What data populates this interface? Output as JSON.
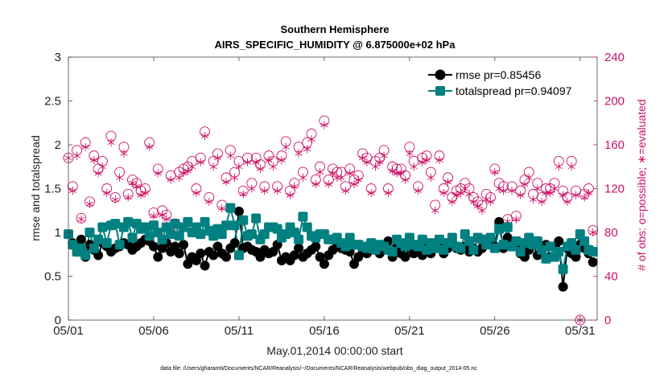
{
  "chart_data": {
    "type": "line",
    "title": "Southern Hemisphere",
    "subtitle": "AIRS_SPECIFIC_HUMIDITY @ 6.875000e+02 hPa",
    "xlabel": "May.01,2014 00:00:00 start",
    "ylabel_left": "rmse and totalspread",
    "ylabel_right": "# of obs: o=possible; ∗=evaluated",
    "footnote": "data file: /Users/gharamti/Documents/NCAR/Reanalysis/~/Documents/NCAR/Reanalysis/webpub/obs_diag_output_2014-05.nc",
    "xlim": [
      1,
      32
    ],
    "ylim_left": [
      0,
      3
    ],
    "ylim_right": [
      0,
      240
    ],
    "x_ticks": [
      1,
      6,
      11,
      16,
      21,
      26,
      31
    ],
    "x_tick_labels": [
      "05/01",
      "05/06",
      "05/11",
      "05/16",
      "05/21",
      "05/26",
      "05/31"
    ],
    "y_left_ticks": [
      0,
      0.5,
      1,
      1.5,
      2,
      2.5,
      3
    ],
    "y_left_tick_labels": [
      "0",
      "0.5",
      "1",
      "1.5",
      "2",
      "2.5",
      "3"
    ],
    "y_right_ticks": [
      0,
      40,
      80,
      120,
      160,
      200,
      240
    ],
    "y_right_tick_labels": [
      "0",
      "40",
      "80",
      "120",
      "160",
      "200",
      "240"
    ],
    "legend_position": "top-right",
    "colors": {
      "rmse": "#000000",
      "totalspread": "#008080",
      "obs": "#cc1166"
    },
    "x": [
      1.0,
      1.25,
      1.5,
      1.75,
      2.0,
      2.25,
      2.5,
      2.75,
      3.0,
      3.25,
      3.5,
      3.75,
      4.0,
      4.25,
      4.5,
      4.75,
      5.0,
      5.25,
      5.5,
      5.75,
      6.0,
      6.25,
      6.5,
      6.75,
      7.0,
      7.25,
      7.5,
      7.75,
      8.0,
      8.25,
      8.5,
      8.75,
      9.0,
      9.25,
      9.5,
      9.75,
      10.0,
      10.25,
      10.5,
      10.75,
      11.0,
      11.25,
      11.5,
      11.75,
      12.0,
      12.25,
      12.5,
      12.75,
      13.0,
      13.25,
      13.5,
      13.75,
      14.0,
      14.25,
      14.5,
      14.75,
      15.0,
      15.25,
      15.5,
      15.75,
      16.0,
      16.25,
      16.5,
      16.75,
      17.0,
      17.25,
      17.5,
      17.75,
      18.0,
      18.25,
      18.5,
      18.75,
      19.0,
      19.25,
      19.5,
      19.75,
      20.0,
      20.25,
      20.5,
      20.75,
      21.0,
      21.25,
      21.5,
      21.75,
      22.0,
      22.25,
      22.5,
      22.75,
      23.0,
      23.25,
      23.5,
      23.75,
      24.0,
      24.25,
      24.5,
      24.75,
      25.0,
      25.25,
      25.5,
      25.75,
      26.0,
      26.25,
      26.5,
      26.75,
      27.0,
      27.25,
      27.5,
      27.75,
      28.0,
      28.25,
      28.5,
      28.75,
      29.0,
      29.25,
      29.5,
      29.75,
      30.0,
      30.25,
      30.5,
      30.75,
      31.0,
      31.25,
      31.5,
      31.75
    ],
    "series": [
      {
        "name": "rmse",
        "legend_label": "rmse pr=0.85456",
        "axis": "left",
        "values": [
          0.98,
          0.88,
          0.84,
          0.92,
          0.72,
          0.86,
          0.8,
          0.74,
          0.88,
          0.84,
          0.78,
          0.82,
          0.84,
          0.88,
          0.86,
          0.8,
          0.84,
          0.88,
          0.92,
          0.9,
          0.84,
          0.72,
          0.82,
          0.88,
          0.78,
          0.84,
          0.76,
          0.86,
          0.64,
          0.72,
          0.68,
          0.76,
          0.62,
          0.78,
          0.74,
          0.84,
          0.76,
          0.72,
          0.82,
          0.88,
          1.24,
          0.82,
          0.84,
          0.8,
          0.78,
          0.72,
          0.8,
          0.76,
          0.78,
          0.86,
          0.68,
          0.72,
          0.68,
          0.74,
          0.82,
          0.72,
          0.76,
          0.8,
          0.84,
          0.72,
          0.64,
          0.74,
          0.8,
          0.84,
          0.82,
          0.8,
          0.78,
          0.64,
          0.72,
          0.8,
          0.76,
          0.84,
          0.82,
          0.76,
          0.82,
          0.9,
          0.72,
          0.84,
          0.76,
          0.72,
          0.82,
          0.76,
          0.8,
          0.74,
          0.82,
          0.76,
          0.88,
          0.84,
          0.76,
          0.82,
          0.86,
          0.82,
          0.8,
          0.84,
          0.78,
          0.82,
          0.78,
          0.82,
          0.86,
          0.88,
          0.84,
          1.12,
          0.82,
          0.94,
          0.84,
          0.86,
          0.76,
          0.72,
          0.8,
          0.86,
          0.74,
          0.76,
          0.86,
          0.72,
          0.84,
          0.9,
          0.38,
          0.82,
          0.76,
          0.72,
          0.86,
          0.82,
          0.76,
          0.66
        ]
      },
      {
        "name": "totalspread",
        "legend_label": "totalspread pr=0.94097",
        "axis": "left",
        "values": [
          0.98,
          0.86,
          0.78,
          0.82,
          0.74,
          1.0,
          0.82,
          0.92,
          1.06,
          0.88,
          1.08,
          1.1,
          0.86,
          1.06,
          1.12,
          0.94,
          1.1,
          1.04,
          1.06,
          0.96,
          1.08,
          1.0,
          0.92,
          1.06,
          0.98,
          1.1,
          0.96,
          1.06,
          1.12,
          1.0,
          1.06,
          0.98,
          1.12,
          1.02,
          0.96,
          1.04,
          0.98,
          1.08,
          1.28,
          1.08,
          0.74,
          1.14,
          0.96,
          0.98,
          1.16,
          0.92,
          0.98,
          1.06,
          1.06,
          1.04,
          0.94,
          0.98,
          1.06,
          1.0,
          0.92,
          1.18,
          1.06,
          0.96,
          0.94,
          0.98,
          0.98,
          0.92,
          0.92,
          0.94,
          0.88,
          0.84,
          0.94,
          0.86,
          0.86,
          0.84,
          0.82,
          0.88,
          0.8,
          0.86,
          0.84,
          0.8,
          0.78,
          0.92,
          0.88,
          0.84,
          0.94,
          0.86,
          0.84,
          0.92,
          0.8,
          0.88,
          0.82,
          0.92,
          0.8,
          0.88,
          0.94,
          0.84,
          0.82,
          0.98,
          0.9,
          0.8,
          0.94,
          0.92,
          0.86,
          0.94,
          0.82,
          1.04,
          0.86,
          1.06,
          0.84,
          0.9,
          0.78,
          0.88,
          0.94,
          0.86,
          0.9,
          0.8,
          0.7,
          0.84,
          0.72,
          0.78,
          0.58,
          0.84,
          0.88,
          0.8,
          0.98,
          0.9,
          0.8,
          0.78
        ]
      },
      {
        "name": "obs_possible",
        "legend_label": "o=possible",
        "axis": "right",
        "values": [
          148,
          122,
          155,
          93,
          162,
          108,
          150,
          138,
          145,
          120,
          168,
          112,
          135,
          158,
          115,
          128,
          125,
          118,
          120,
          162,
          98,
          138,
          100,
          96,
          132,
          88,
          135,
          138,
          140,
          145,
          120,
          148,
          172,
          112,
          145,
          152,
          105,
          130,
          155,
          135,
          145,
          118,
          148,
          125,
          148,
          142,
          122,
          150,
          145,
          122,
          150,
          163,
          118,
          125,
          158,
          135,
          162,
          170,
          128,
          140,
          182,
          128,
          138,
          135,
          135,
          122,
          138,
          128,
          132,
          152,
          148,
          120,
          145,
          148,
          155,
          120,
          140,
          138,
          138,
          132,
          158,
          145,
          122,
          148,
          150,
          135,
          105,
          150,
          120,
          130,
          112,
          118,
          120,
          125,
          120,
          112,
          108,
          105,
          115,
          112,
          138,
          125,
          122,
          92,
          122,
          95,
          118,
          128,
          135,
          115,
          125,
          112,
          120,
          120,
          125,
          145,
          118,
          112,
          145,
          118,
          0,
          115,
          120,
          82
        ]
      },
      {
        "name": "obs_evaluated",
        "legend_label": "∗=evaluated",
        "axis": "right",
        "values": [
          148,
          118,
          150,
          92,
          158,
          106,
          146,
          134,
          140,
          116,
          162,
          110,
          130,
          152,
          112,
          125,
          122,
          114,
          116,
          158,
          95,
          134,
          96,
          92,
          128,
          85,
          130,
          134,
          136,
          140,
          116,
          144,
          168,
          108,
          140,
          148,
          102,
          126,
          150,
          130,
          140,
          115,
          144,
          120,
          144,
          138,
          118,
          146,
          140,
          118,
          146,
          158,
          114,
          122,
          152,
          130,
          156,
          165,
          124,
          135,
          178,
          124,
          134,
          130,
          130,
          118,
          134,
          124,
          128,
          148,
          144,
          116,
          140,
          144,
          150,
          116,
          136,
          134,
          134,
          128,
          152,
          140,
          118,
          144,
          146,
          130,
          100,
          146,
          116,
          126,
          108,
          114,
          116,
          120,
          115,
          108,
          104,
          100,
          110,
          108,
          135,
          120,
          118,
          90,
          118,
          92,
          114,
          124,
          130,
          110,
          120,
          108,
          116,
          116,
          120,
          140,
          114,
          108,
          140,
          114,
          0,
          112,
          116,
          80
        ]
      }
    ]
  }
}
